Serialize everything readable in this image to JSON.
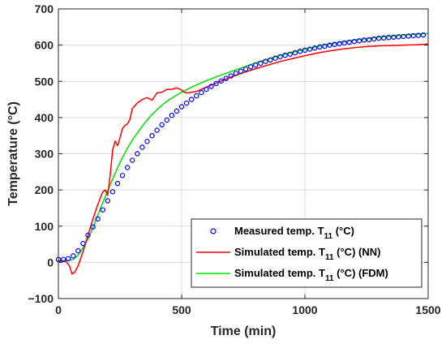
{
  "chart_data": {
    "type": "line",
    "xlabel": "Time (min)",
    "ylabel": "Temperature (°C)",
    "xlim": [
      0,
      1500
    ],
    "ylim": [
      -100,
      700
    ],
    "xticks": [
      0,
      500,
      1000,
      1500
    ],
    "yticks": [
      -100,
      0,
      100,
      200,
      300,
      400,
      500,
      600,
      700
    ],
    "grid": true,
    "legend_position": "bottom-right",
    "series": [
      {
        "name": "Measured temp. T11 (°C)",
        "legend": {
          "prefix": "Measured temp. T",
          "sub": "11",
          "suffix": " (°C)"
        },
        "style": "markers",
        "color": "#0000ff",
        "x": [
          0,
          20,
          40,
          60,
          80,
          100,
          120,
          140,
          160,
          180,
          200,
          220,
          240,
          260,
          280,
          300,
          320,
          340,
          360,
          380,
          400,
          420,
          440,
          460,
          480,
          500,
          520,
          540,
          560,
          580,
          600,
          620,
          640,
          660,
          680,
          700,
          720,
          740,
          760,
          780,
          800,
          820,
          840,
          860,
          880,
          900,
          920,
          940,
          960,
          980,
          1000,
          1020,
          1040,
          1060,
          1080,
          1100,
          1120,
          1140,
          1160,
          1180,
          1200,
          1220,
          1240,
          1260,
          1280,
          1300,
          1320,
          1340,
          1360,
          1380,
          1400,
          1420,
          1440,
          1460,
          1480
        ],
        "y": [
          8,
          8,
          10,
          18,
          32,
          52,
          75,
          98,
          120,
          145,
          170,
          195,
          218,
          240,
          262,
          282,
          300,
          318,
          334,
          350,
          365,
          380,
          393,
          406,
          418,
          430,
          440,
          450,
          460,
          469,
          478,
          486,
          494,
          501,
          508,
          515,
          522,
          528,
          534,
          540,
          545,
          550,
          555,
          559,
          564,
          568,
          572,
          575,
          579,
          583,
          586,
          589,
          592,
          595,
          597,
          600,
          602,
          604,
          606,
          608,
          610,
          612,
          614,
          615,
          617,
          619,
          620,
          621,
          622,
          623,
          624,
          625,
          626,
          627,
          628
        ]
      },
      {
        "name": "Simulated temp. T11 (°C) (NN)",
        "legend": {
          "prefix": "Simulated temp. T",
          "sub": "11",
          "suffix": " (°C) (NN)"
        },
        "style": "line",
        "color": "#ff0000",
        "x": [
          0,
          30,
          45,
          55,
          65,
          80,
          100,
          120,
          140,
          160,
          180,
          190,
          200,
          210,
          220,
          230,
          240,
          250,
          260,
          270,
          280,
          290,
          300,
          320,
          340,
          360,
          380,
          400,
          420,
          440,
          460,
          480,
          500,
          510,
          520,
          530,
          540,
          560,
          580,
          600,
          650,
          700,
          750,
          800,
          850,
          900,
          950,
          1000,
          1050,
          1100,
          1150,
          1200,
          1250,
          1300,
          1350,
          1400,
          1450,
          1500
        ],
        "y": [
          3,
          3,
          -10,
          -32,
          -28,
          -10,
          30,
          75,
          120,
          160,
          195,
          200,
          185,
          240,
          310,
          335,
          322,
          345,
          370,
          378,
          382,
          395,
          425,
          440,
          450,
          455,
          448,
          468,
          470,
          478,
          478,
          482,
          476,
          470,
          468,
          468,
          470,
          472,
          478,
          484,
          498,
          512,
          524,
          535,
          545,
          555,
          563,
          571,
          578,
          584,
          589,
          593,
          596,
          598,
          599,
          600,
          601,
          603
        ]
      },
      {
        "name": "Simulated temp. T11 (°C) (FDM)",
        "legend": {
          "prefix": "Simulated temp. T",
          "sub": "11",
          "suffix": " (°C) (FDM)"
        },
        "style": "line",
        "color": "#00e000",
        "x": [
          0,
          40,
          60,
          80,
          100,
          120,
          140,
          160,
          180,
          200,
          220,
          240,
          260,
          280,
          300,
          325,
          350,
          375,
          400,
          425,
          450,
          500,
          550,
          600,
          650,
          700,
          800,
          900,
          1000,
          1100,
          1200,
          1300,
          1400,
          1500
        ],
        "y": [
          5,
          5,
          8,
          20,
          40,
          65,
          95,
          130,
          165,
          198,
          230,
          262,
          290,
          315,
          338,
          362,
          385,
          405,
          422,
          437,
          450,
          470,
          487,
          502,
          515,
          527,
          551,
          572,
          589,
          603,
          614,
          622,
          628,
          632
        ]
      }
    ]
  }
}
